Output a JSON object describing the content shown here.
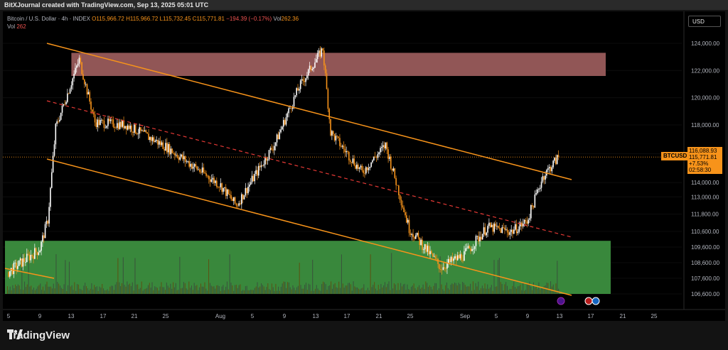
{
  "header": {
    "text": "BitXJournal created with TradingView.com, Sep 13, 2025 05:01 UTC"
  },
  "legend": {
    "symbol": "Bitcoin / U.S. Dollar · 4h · INDEX",
    "open": "O115,966.72",
    "high": "H115,966.72",
    "low": "L115,732.45",
    "close": "C115,771.81",
    "change": "−194.39 (−0.17%)",
    "vol_label": "Vol",
    "vol_value": "262.36",
    "row2_label": "Vol",
    "row2_value": "262"
  },
  "currency_button": "USD",
  "symbol_tag": "BTCUSD",
  "price_tag": {
    "price": "115,771.81",
    "change": "+7.53%",
    "countdown": "02:58:30",
    "above": "116,088.93"
  },
  "footer": {
    "brand": "TradingView"
  },
  "colors": {
    "bg": "#000000",
    "up": "#ffffff",
    "down": "#f7931a",
    "channel": "#f7931a",
    "resistance": "#a15f5f",
    "support": "#43a047",
    "midline": "#e53935"
  },
  "chart_data": {
    "type": "candlestick",
    "title": "Bitcoin / U.S. Dollar · 4h · INDEX",
    "x_ticks": [
      "5",
      "9",
      "13",
      "17",
      "21",
      "25",
      "Aug",
      "5",
      "9",
      "13",
      "17",
      "21",
      "25",
      "Sep",
      "5",
      "9",
      "13",
      "17",
      "21",
      "25"
    ],
    "y_ticks": [
      106600,
      107600,
      108600,
      109600,
      110600,
      111800,
      113000,
      114000,
      116000,
      118000,
      120000,
      122000,
      124000
    ],
    "y_tick_labels": [
      "106,600.00",
      "107,600.00",
      "108,600.00",
      "109,600.00",
      "110,600.00",
      "111,800.00",
      "113,000.00",
      "114,000.00",
      "116,000.00",
      "118,000.00",
      "120,000.00",
      "122,000.00",
      "124,000.00"
    ],
    "zones": [
      {
        "name": "resistance",
        "from": 121600,
        "to": 123300
      },
      {
        "name": "support",
        "from": 106600,
        "to": 110000
      }
    ],
    "key_closes": [
      {
        "date": "Jul 5",
        "close": 108000
      },
      {
        "date": "Jul 9",
        "close": 109500
      },
      {
        "date": "Jul 10",
        "close": 111400
      },
      {
        "date": "Jul 11",
        "close": 117800
      },
      {
        "date": "Jul 14",
        "close": 122800
      },
      {
        "date": "Jul 16",
        "close": 118200
      },
      {
        "date": "Jul 20",
        "close": 118000
      },
      {
        "date": "Jul 25",
        "close": 116500
      },
      {
        "date": "Aug 1",
        "close": 113800
      },
      {
        "date": "Aug 3",
        "close": 112400
      },
      {
        "date": "Aug 8",
        "close": 116800
      },
      {
        "date": "Aug 11",
        "close": 120800
      },
      {
        "date": "Aug 14",
        "close": 123600
      },
      {
        "date": "Aug 15",
        "close": 117500
      },
      {
        "date": "Aug 19",
        "close": 114700
      },
      {
        "date": "Aug 22",
        "close": 116600
      },
      {
        "date": "Aug 25",
        "close": 110800
      },
      {
        "date": "Aug 29",
        "close": 108300
      },
      {
        "date": "Sep 1",
        "close": 109100
      },
      {
        "date": "Sep 4",
        "close": 110900
      },
      {
        "date": "Sep 7",
        "close": 110600
      },
      {
        "date": "Sep 9",
        "close": 111300
      },
      {
        "date": "Sep 11",
        "close": 114400
      },
      {
        "date": "Sep 13",
        "close": 115771.81
      }
    ],
    "last_price": 115771.81
  }
}
